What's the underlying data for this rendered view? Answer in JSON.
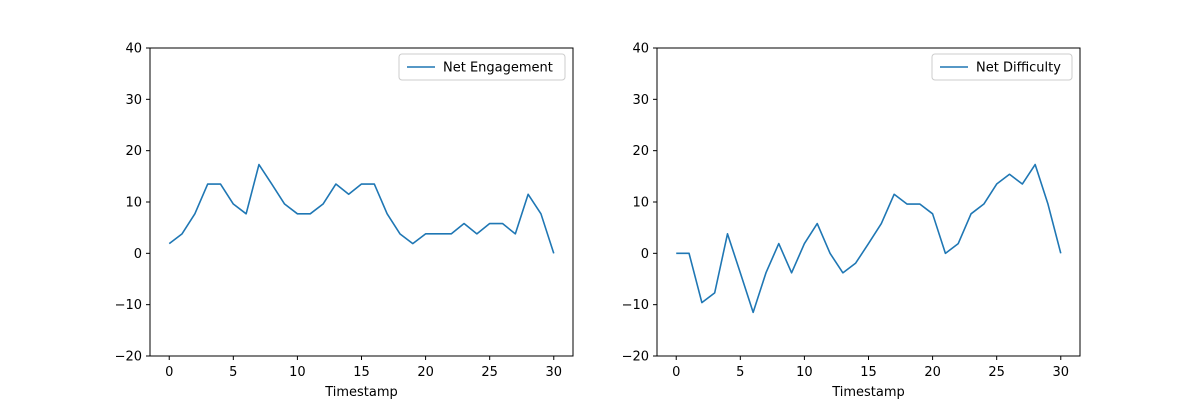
{
  "chart_data": [
    {
      "type": "line",
      "xlabel": "Timestamp",
      "ylabel": "",
      "xlim": [
        -1.5,
        31.5
      ],
      "ylim": [
        -20,
        40
      ],
      "xticks": [
        0,
        5,
        10,
        15,
        20,
        25,
        30
      ],
      "yticks": [
        -20,
        -10,
        0,
        10,
        20,
        30,
        40
      ],
      "legend_position": "top-right",
      "series": [
        {
          "name": "Net Engagement",
          "color": "#1f77b4",
          "x": [
            0,
            1,
            2,
            3,
            4,
            5,
            6,
            7,
            8,
            9,
            10,
            11,
            12,
            13,
            14,
            15,
            16,
            17,
            18,
            19,
            20,
            21,
            22,
            23,
            24,
            25,
            26,
            27,
            28,
            29,
            30
          ],
          "y": [
            1.9,
            3.8,
            7.7,
            13.5,
            13.5,
            9.6,
            7.7,
            17.3,
            13.5,
            9.6,
            7.7,
            7.7,
            9.6,
            13.5,
            11.5,
            13.5,
            13.5,
            7.7,
            3.8,
            1.9,
            3.8,
            3.8,
            3.8,
            5.8,
            3.8,
            5.8,
            5.8,
            3.8,
            11.5,
            7.7,
            0
          ]
        }
      ]
    },
    {
      "type": "line",
      "xlabel": "Timestamp",
      "ylabel": "",
      "xlim": [
        -1.5,
        31.5
      ],
      "ylim": [
        -20,
        40
      ],
      "xticks": [
        0,
        5,
        10,
        15,
        20,
        25,
        30
      ],
      "yticks": [
        -20,
        -10,
        0,
        10,
        20,
        30,
        40
      ],
      "legend_position": "top-right",
      "series": [
        {
          "name": "Net Difficulty",
          "color": "#1f77b4",
          "x": [
            0,
            1,
            2,
            3,
            4,
            5,
            6,
            7,
            8,
            9,
            10,
            11,
            12,
            13,
            14,
            15,
            16,
            17,
            18,
            19,
            20,
            21,
            22,
            23,
            24,
            25,
            26,
            27,
            28,
            29,
            30
          ],
          "y": [
            0,
            0,
            -9.6,
            -7.7,
            3.8,
            -3.8,
            -11.5,
            -3.8,
            1.9,
            -3.8,
            1.9,
            5.8,
            0,
            -3.8,
            -1.9,
            1.9,
            5.8,
            11.5,
            9.6,
            9.6,
            7.7,
            0,
            1.9,
            7.7,
            9.6,
            13.5,
            15.4,
            13.5,
            17.3,
            9.6,
            0
          ]
        }
      ]
    }
  ]
}
